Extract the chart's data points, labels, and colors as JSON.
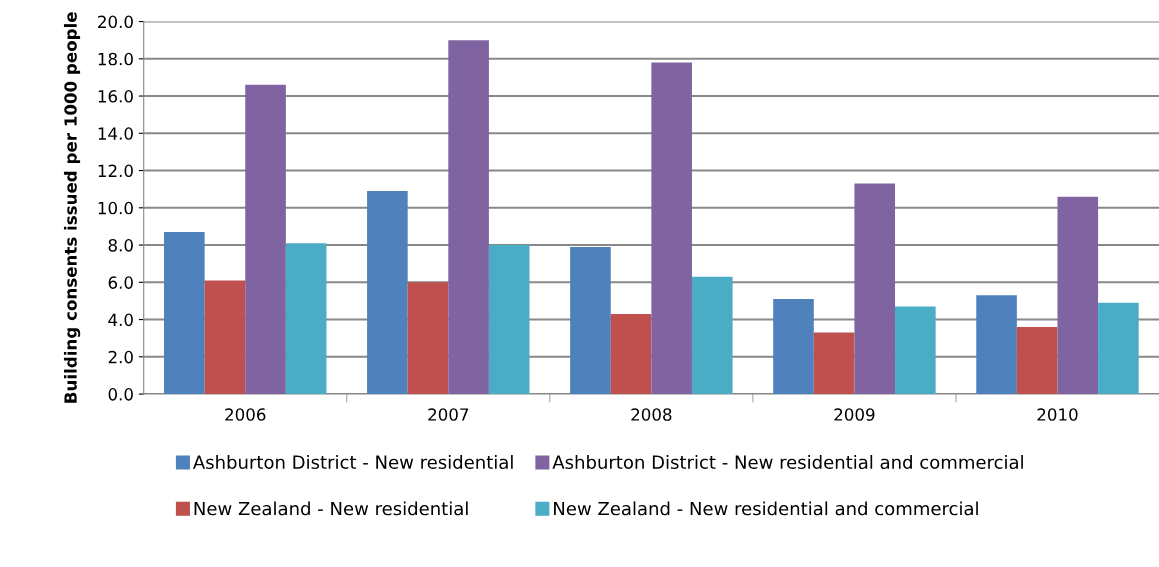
{
  "chart_data": {
    "type": "bar",
    "ylabel": "Building consents issued per 1000 people",
    "categories": [
      "2006",
      "2007",
      "2008",
      "2009",
      "2010"
    ],
    "series": [
      {
        "name": "Ashburton District - New residential",
        "color": "#4f81bd",
        "values": [
          8.7,
          10.9,
          7.9,
          5.1,
          5.3
        ]
      },
      {
        "name": "New Zealand - New residential",
        "color": "#c0504d",
        "values": [
          6.1,
          6.0,
          4.3,
          3.3,
          3.6
        ]
      },
      {
        "name": "Ashburton District - New residential and commercial",
        "color": "#8064a2",
        "values": [
          16.6,
          19.0,
          17.8,
          11.3,
          10.6
        ]
      },
      {
        "name": "New Zealand - New residential and commercial",
        "color": "#4bacc6",
        "values": [
          8.1,
          8.0,
          6.3,
          4.7,
          4.9
        ]
      }
    ],
    "ylim": [
      0,
      20
    ],
    "yticks": [
      {
        "value": 0,
        "label": "0.0"
      },
      {
        "value": 2,
        "label": "2.0"
      },
      {
        "value": 4,
        "label": "4.0"
      },
      {
        "value": 6,
        "label": "6.0"
      },
      {
        "value": 8,
        "label": "8.0"
      },
      {
        "value": 10,
        "label": "10.0"
      },
      {
        "value": 12,
        "label": "12.0"
      },
      {
        "value": 14,
        "label": "14.0"
      },
      {
        "value": 16,
        "label": "16.0"
      },
      {
        "value": 18,
        "label": "18.0"
      },
      {
        "value": 20,
        "label": "20.0"
      }
    ],
    "grid": "y",
    "legend": "bottom"
  }
}
